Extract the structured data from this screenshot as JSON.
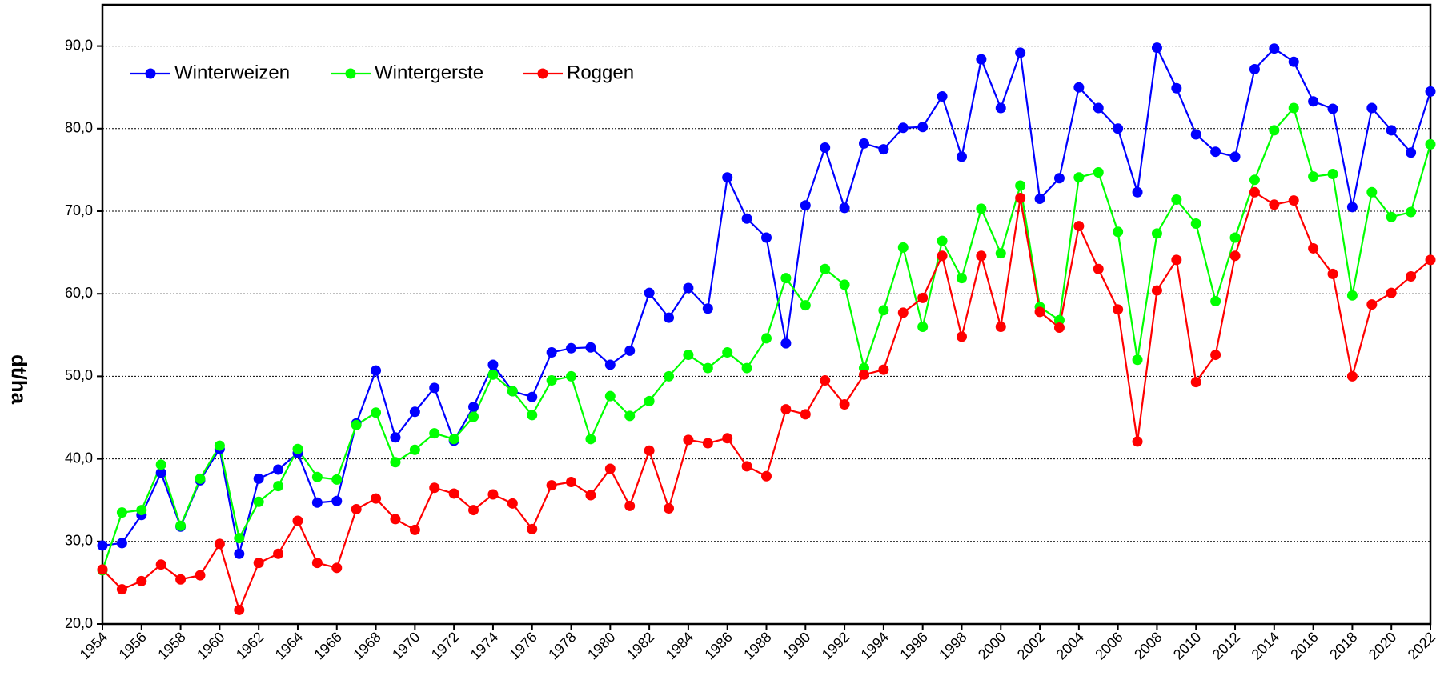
{
  "chart_data": {
    "type": "line",
    "y_label": "dt/ha",
    "x": [
      1954,
      1955,
      1956,
      1957,
      1958,
      1959,
      1960,
      1961,
      1962,
      1963,
      1964,
      1965,
      1966,
      1967,
      1968,
      1969,
      1970,
      1971,
      1972,
      1973,
      1974,
      1975,
      1976,
      1977,
      1978,
      1979,
      1980,
      1981,
      1982,
      1983,
      1984,
      1985,
      1986,
      1987,
      1988,
      1989,
      1990,
      1991,
      1992,
      1993,
      1994,
      1995,
      1996,
      1997,
      1998,
      1999,
      2000,
      2001,
      2002,
      2003,
      2004,
      2005,
      2006,
      2007,
      2008,
      2009,
      2010,
      2011,
      2012,
      2013,
      2014,
      2015,
      2016,
      2017,
      2018,
      2019,
      2020,
      2021,
      2022
    ],
    "series": [
      {
        "name": "Winterweizen",
        "color": "#0000ff",
        "values": [
          29.5,
          29.8,
          33.2,
          38.3,
          31.8,
          37.4,
          41.2,
          28.5,
          37.6,
          38.7,
          40.7,
          34.7,
          34.9,
          44.3,
          50.7,
          42.6,
          45.7,
          48.6,
          42.2,
          46.3,
          51.4,
          48.2,
          47.5,
          52.9,
          53.4,
          53.5,
          51.4,
          53.1,
          60.1,
          57.1,
          60.7,
          58.2,
          74.1,
          69.1,
          66.8,
          54.0,
          70.7,
          77.7,
          70.4,
          78.2,
          77.5,
          80.1,
          80.2,
          83.9,
          76.6,
          88.4,
          82.5,
          89.2,
          71.5,
          74.0,
          85.0,
          82.5,
          80.0,
          72.3,
          89.8,
          84.9,
          79.3,
          77.2,
          76.6,
          87.2,
          89.7,
          88.1,
          83.3,
          82.4,
          70.5,
          82.5,
          79.8,
          77.1,
          84.5
        ]
      },
      {
        "name": "Wintergerste",
        "color": "#00ff00",
        "values": [
          26.5,
          33.5,
          33.8,
          39.3,
          31.9,
          37.6,
          41.6,
          30.4,
          34.8,
          36.7,
          41.2,
          37.8,
          37.5,
          44.1,
          45.6,
          39.6,
          41.1,
          43.1,
          42.4,
          45.1,
          50.2,
          48.2,
          45.3,
          49.5,
          50.0,
          42.4,
          47.6,
          45.2,
          47.0,
          50.0,
          52.6,
          51.0,
          52.9,
          51.0,
          54.6,
          61.9,
          58.6,
          63.0,
          61.1,
          51.0,
          58.0,
          65.6,
          56.0,
          66.4,
          61.9,
          70.3,
          64.9,
          73.1,
          58.4,
          56.8,
          74.1,
          74.7,
          67.5,
          52.0,
          67.3,
          71.4,
          68.5,
          59.1,
          66.8,
          73.8,
          79.8,
          82.5,
          74.2,
          74.5,
          59.8,
          72.3,
          69.3,
          69.9,
          78.1
        ]
      },
      {
        "name": "Roggen",
        "color": "#ff0000",
        "values": [
          26.6,
          24.2,
          25.2,
          27.2,
          25.4,
          25.9,
          29.7,
          21.7,
          27.4,
          28.5,
          32.5,
          27.4,
          26.8,
          33.9,
          35.2,
          32.7,
          31.4,
          36.5,
          35.8,
          33.8,
          35.7,
          34.6,
          31.5,
          36.8,
          37.2,
          35.6,
          38.8,
          34.3,
          41.0,
          34.0,
          42.3,
          41.9,
          42.5,
          39.1,
          37.9,
          46.0,
          45.4,
          49.5,
          46.6,
          50.2,
          50.8,
          57.7,
          59.5,
          64.6,
          54.8,
          64.6,
          56.0,
          71.6,
          57.8,
          55.9,
          68.2,
          63.0,
          58.1,
          42.1,
          60.4,
          64.1,
          49.3,
          52.6,
          64.6,
          72.3,
          70.8,
          71.3,
          65.5,
          62.4,
          50.0,
          58.7,
          60.1,
          62.1,
          64.1
        ]
      }
    ],
    "xlim": [
      1954,
      2022
    ],
    "xticks": [
      1954,
      1956,
      1958,
      1960,
      1962,
      1964,
      1966,
      1968,
      1970,
      1972,
      1974,
      1976,
      1978,
      1980,
      1982,
      1984,
      1986,
      1988,
      1990,
      1992,
      1994,
      1996,
      1998,
      2000,
      2002,
      2004,
      2006,
      2008,
      2010,
      2012,
      2014,
      2016,
      2018,
      2020,
      2022
    ],
    "ylim": [
      20,
      95
    ],
    "yticks": [
      {
        "value": 20,
        "label": "20,0"
      },
      {
        "value": 30,
        "label": "30,0"
      },
      {
        "value": 40,
        "label": "40,0"
      },
      {
        "value": 50,
        "label": "50,0"
      },
      {
        "value": 60,
        "label": "60,0"
      },
      {
        "value": 70,
        "label": "70,0"
      },
      {
        "value": 80,
        "label": "80,0"
      },
      {
        "value": 90,
        "label": "90,0"
      }
    ],
    "grid": true,
    "legend": "top-left"
  }
}
